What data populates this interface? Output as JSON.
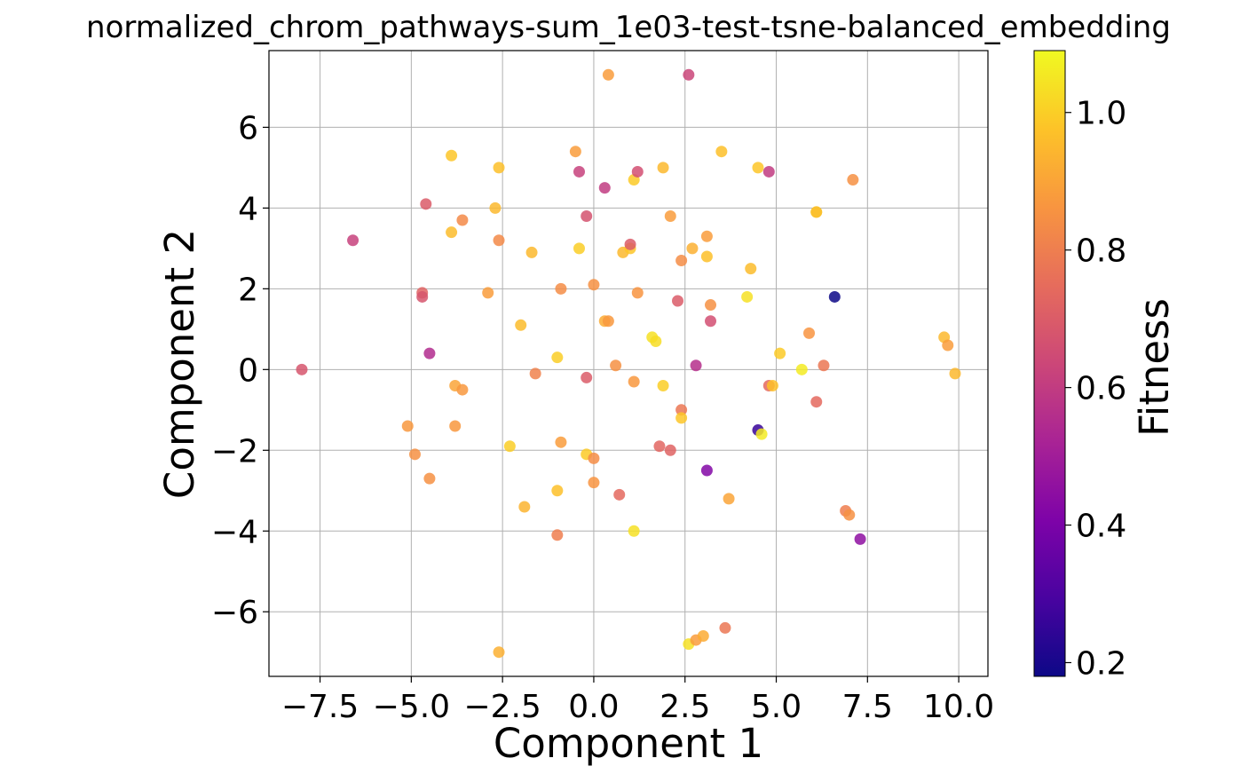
{
  "chart_data": {
    "type": "scatter",
    "title": "normalized_chrom_pathways-sum_1e03-test-tsne-balanced_embedding",
    "xlabel": "Component 1",
    "ylabel": "Component 2",
    "xlim": [
      -8.9,
      10.8
    ],
    "ylim": [
      -7.6,
      7.9
    ],
    "xticks": [
      -7.5,
      -5.0,
      -2.5,
      0.0,
      2.5,
      5.0,
      7.5,
      10.0
    ],
    "xtick_labels": [
      "−7.5",
      "−5.0",
      "−2.5",
      "0.0",
      "2.5",
      "5.0",
      "7.5",
      "10.0"
    ],
    "yticks": [
      -6,
      -4,
      -2,
      0,
      2,
      4,
      6
    ],
    "ytick_labels": [
      "−6",
      "−4",
      "−2",
      "0",
      "2",
      "4",
      "6"
    ],
    "grid": true,
    "colormap": "plasma",
    "colorbar": {
      "label": "Fitness",
      "range": [
        0.18,
        1.09
      ],
      "ticks": [
        0.2,
        0.4,
        0.6,
        0.8,
        1.0
      ],
      "tick_labels": [
        "0.2",
        "0.4",
        "0.6",
        "0.8",
        "1.0"
      ]
    },
    "points": [
      {
        "x": -8.0,
        "y": 0.0,
        "c": 0.68
      },
      {
        "x": -6.6,
        "y": 3.2,
        "c": 0.62
      },
      {
        "x": -5.1,
        "y": -1.4,
        "c": 0.87
      },
      {
        "x": -4.9,
        "y": -2.1,
        "c": 0.85
      },
      {
        "x": -4.7,
        "y": 1.9,
        "c": 0.72
      },
      {
        "x": -4.7,
        "y": 1.8,
        "c": 0.68
      },
      {
        "x": -4.6,
        "y": 4.1,
        "c": 0.7
      },
      {
        "x": -4.5,
        "y": 0.4,
        "c": 0.55
      },
      {
        "x": -4.5,
        "y": -2.7,
        "c": 0.85
      },
      {
        "x": -3.9,
        "y": 5.3,
        "c": 0.98
      },
      {
        "x": -3.9,
        "y": 3.4,
        "c": 0.96
      },
      {
        "x": -3.8,
        "y": -0.4,
        "c": 0.9
      },
      {
        "x": -3.8,
        "y": -1.4,
        "c": 0.87
      },
      {
        "x": -3.6,
        "y": 3.7,
        "c": 0.83
      },
      {
        "x": -3.6,
        "y": -0.5,
        "c": 0.87
      },
      {
        "x": -2.9,
        "y": 1.9,
        "c": 0.88
      },
      {
        "x": -2.7,
        "y": 4.0,
        "c": 0.95
      },
      {
        "x": -2.6,
        "y": 5.0,
        "c": 0.97
      },
      {
        "x": -2.6,
        "y": 3.2,
        "c": 0.83
      },
      {
        "x": -2.6,
        "y": -7.0,
        "c": 0.93
      },
      {
        "x": -2.3,
        "y": -1.9,
        "c": 1.0
      },
      {
        "x": -2.0,
        "y": 1.1,
        "c": 0.96
      },
      {
        "x": -1.9,
        "y": -3.4,
        "c": 0.94
      },
      {
        "x": -1.7,
        "y": 2.9,
        "c": 0.95
      },
      {
        "x": -1.6,
        "y": -0.1,
        "c": 0.81
      },
      {
        "x": -1.0,
        "y": 0.3,
        "c": 1.0
      },
      {
        "x": -1.0,
        "y": -3.0,
        "c": 0.97
      },
      {
        "x": -1.0,
        "y": -4.1,
        "c": 0.8
      },
      {
        "x": -0.9,
        "y": 2.0,
        "c": 0.84
      },
      {
        "x": -0.9,
        "y": -1.8,
        "c": 0.88
      },
      {
        "x": -0.5,
        "y": 5.4,
        "c": 0.88
      },
      {
        "x": -0.4,
        "y": 4.9,
        "c": 0.62
      },
      {
        "x": -0.4,
        "y": 3.0,
        "c": 1.0
      },
      {
        "x": -0.2,
        "y": 3.8,
        "c": 0.67
      },
      {
        "x": -0.2,
        "y": -0.2,
        "c": 0.7
      },
      {
        "x": -0.2,
        "y": -2.1,
        "c": 0.99
      },
      {
        "x": 0.0,
        "y": -2.2,
        "c": 0.84
      },
      {
        "x": 0.0,
        "y": 2.1,
        "c": 0.85
      },
      {
        "x": 0.0,
        "y": -2.8,
        "c": 0.86
      },
      {
        "x": 0.3,
        "y": 4.5,
        "c": 0.6
      },
      {
        "x": 0.3,
        "y": 1.2,
        "c": 0.92
      },
      {
        "x": 0.4,
        "y": 1.2,
        "c": 0.87
      },
      {
        "x": 0.4,
        "y": 7.3,
        "c": 0.88
      },
      {
        "x": 0.6,
        "y": 0.1,
        "c": 0.85
      },
      {
        "x": 0.7,
        "y": -3.1,
        "c": 0.74
      },
      {
        "x": 0.8,
        "y": 2.9,
        "c": 0.95
      },
      {
        "x": 1.0,
        "y": 3.0,
        "c": 0.98
      },
      {
        "x": 1.0,
        "y": 3.1,
        "c": 0.7
      },
      {
        "x": 1.1,
        "y": -0.3,
        "c": 0.87
      },
      {
        "x": 1.1,
        "y": -4.0,
        "c": 1.04
      },
      {
        "x": 1.1,
        "y": 4.7,
        "c": 0.99
      },
      {
        "x": 1.2,
        "y": 4.9,
        "c": 0.66
      },
      {
        "x": 1.2,
        "y": 1.9,
        "c": 0.86
      },
      {
        "x": 1.6,
        "y": 0.8,
        "c": 1.04
      },
      {
        "x": 1.7,
        "y": 0.7,
        "c": 1.03
      },
      {
        "x": 1.8,
        "y": -1.9,
        "c": 0.73
      },
      {
        "x": 1.9,
        "y": 5.0,
        "c": 0.95
      },
      {
        "x": 1.9,
        "y": -0.4,
        "c": 1.0
      },
      {
        "x": 2.1,
        "y": 3.8,
        "c": 0.88
      },
      {
        "x": 2.1,
        "y": -2.0,
        "c": 0.72
      },
      {
        "x": 2.3,
        "y": 1.7,
        "c": 0.7
      },
      {
        "x": 2.4,
        "y": -1.0,
        "c": 0.78
      },
      {
        "x": 2.4,
        "y": -1.2,
        "c": 0.98
      },
      {
        "x": 2.4,
        "y": 2.7,
        "c": 0.84
      },
      {
        "x": 2.6,
        "y": 7.3,
        "c": 0.63
      },
      {
        "x": 2.6,
        "y": -6.8,
        "c": 1.04
      },
      {
        "x": 2.7,
        "y": 3.0,
        "c": 0.93
      },
      {
        "x": 2.8,
        "y": -6.7,
        "c": 0.88
      },
      {
        "x": 2.8,
        "y": 0.1,
        "c": 0.56
      },
      {
        "x": 3.0,
        "y": -6.6,
        "c": 0.92
      },
      {
        "x": 3.1,
        "y": 3.3,
        "c": 0.88
      },
      {
        "x": 3.1,
        "y": 2.8,
        "c": 0.97
      },
      {
        "x": 3.1,
        "y": -2.5,
        "c": 0.42
      },
      {
        "x": 3.2,
        "y": 1.6,
        "c": 0.85
      },
      {
        "x": 3.2,
        "y": 1.2,
        "c": 0.66
      },
      {
        "x": 3.5,
        "y": 5.4,
        "c": 0.97
      },
      {
        "x": 3.6,
        "y": -6.4,
        "c": 0.78
      },
      {
        "x": 3.7,
        "y": -3.2,
        "c": 0.9
      },
      {
        "x": 4.2,
        "y": 1.8,
        "c": 1.04
      },
      {
        "x": 4.3,
        "y": 2.5,
        "c": 0.96
      },
      {
        "x": 4.5,
        "y": 5.0,
        "c": 0.98
      },
      {
        "x": 4.5,
        "y": -1.5,
        "c": 0.26
      },
      {
        "x": 4.6,
        "y": -1.6,
        "c": 1.06
      },
      {
        "x": 4.8,
        "y": 4.9,
        "c": 0.6
      },
      {
        "x": 4.8,
        "y": -0.4,
        "c": 0.74
      },
      {
        "x": 4.9,
        "y": -0.4,
        "c": 0.97
      },
      {
        "x": 5.1,
        "y": 0.4,
        "c": 0.99
      },
      {
        "x": 5.7,
        "y": 0.0,
        "c": 1.06
      },
      {
        "x": 5.9,
        "y": 0.9,
        "c": 0.86
      },
      {
        "x": 6.1,
        "y": 3.9,
        "c": 1.02
      },
      {
        "x": 6.1,
        "y": 3.9,
        "c": 0.96
      },
      {
        "x": 6.1,
        "y": -0.8,
        "c": 0.74
      },
      {
        "x": 6.3,
        "y": 0.1,
        "c": 0.78
      },
      {
        "x": 6.6,
        "y": 1.8,
        "c": 0.18
      },
      {
        "x": 6.9,
        "y": -3.5,
        "c": 0.8
      },
      {
        "x": 7.0,
        "y": -3.6,
        "c": 0.85
      },
      {
        "x": 7.1,
        "y": 4.7,
        "c": 0.85
      },
      {
        "x": 7.3,
        "y": -4.2,
        "c": 0.45
      },
      {
        "x": 9.6,
        "y": 0.8,
        "c": 0.95
      },
      {
        "x": 9.7,
        "y": 0.6,
        "c": 0.88
      },
      {
        "x": 9.9,
        "y": -0.1,
        "c": 0.95
      }
    ]
  }
}
